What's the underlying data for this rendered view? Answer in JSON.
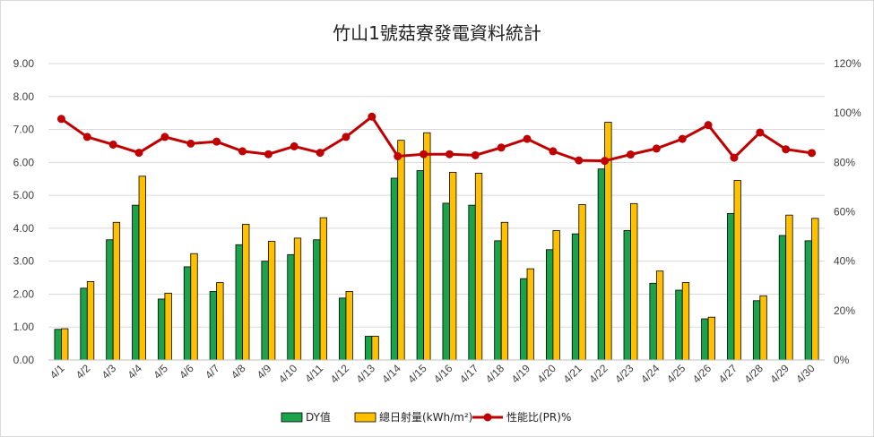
{
  "chart_data": {
    "type": "bar",
    "title": "竹山1號菇寮發電資料統計",
    "categories": [
      "4/1",
      "4/2",
      "4/3",
      "4/4",
      "4/5",
      "4/6",
      "4/7",
      "4/8",
      "4/9",
      "4/10",
      "4/11",
      "4/12",
      "4/13",
      "4/14",
      "4/15",
      "4/16",
      "4/17",
      "4/18",
      "4/19",
      "4/20",
      "4/21",
      "4/22",
      "4/23",
      "4/24",
      "4/25",
      "4/26",
      "4/27",
      "4/28",
      "4/29",
      "4/30"
    ],
    "series": [
      {
        "name": "DY值",
        "type": "bar",
        "axis": "left",
        "color": "#1aa34a",
        "values": [
          0.93,
          2.18,
          3.65,
          4.7,
          1.85,
          2.83,
          2.08,
          3.5,
          3.0,
          3.2,
          3.65,
          1.88,
          0.72,
          5.52,
          5.75,
          4.76,
          4.7,
          3.62,
          2.47,
          3.35,
          3.83,
          5.8,
          3.93,
          2.33,
          2.12,
          1.25,
          4.45,
          1.8,
          3.78,
          3.62
        ]
      },
      {
        "name": "總日射量(kWh/m²)",
        "type": "bar",
        "axis": "left",
        "color": "#ffc000",
        "values": [
          0.95,
          2.38,
          4.18,
          5.58,
          2.03,
          3.23,
          2.35,
          4.12,
          3.6,
          3.7,
          4.32,
          2.08,
          0.72,
          6.67,
          6.9,
          5.7,
          5.67,
          4.18,
          2.77,
          3.93,
          4.72,
          7.22,
          4.75,
          2.7,
          2.35,
          1.3,
          5.45,
          1.95,
          4.4,
          4.3
        ]
      },
      {
        "name": "性能比(PR)%",
        "type": "line",
        "axis": "right",
        "color": "#c00000",
        "values": [
          97.6,
          90.3,
          87.2,
          83.9,
          90.3,
          87.6,
          88.4,
          84.5,
          83.3,
          86.5,
          83.9,
          90.3,
          98.5,
          82.5,
          83.3,
          83.3,
          82.9,
          86.0,
          89.5,
          84.5,
          80.8,
          80.6,
          83.2,
          85.6,
          89.5,
          95.1,
          81.9,
          92.1,
          85.3,
          83.8
        ]
      }
    ],
    "y_left": {
      "min": 0,
      "max": 9,
      "ticks": [
        "0.00",
        "1.00",
        "2.00",
        "3.00",
        "4.00",
        "5.00",
        "6.00",
        "7.00",
        "8.00",
        "9.00"
      ]
    },
    "y_right": {
      "min": 0,
      "max": 120,
      "ticks": [
        "0%",
        "20%",
        "40%",
        "60%",
        "80%",
        "100%",
        "120%"
      ]
    },
    "grid": true,
    "legend_position": "bottom"
  }
}
